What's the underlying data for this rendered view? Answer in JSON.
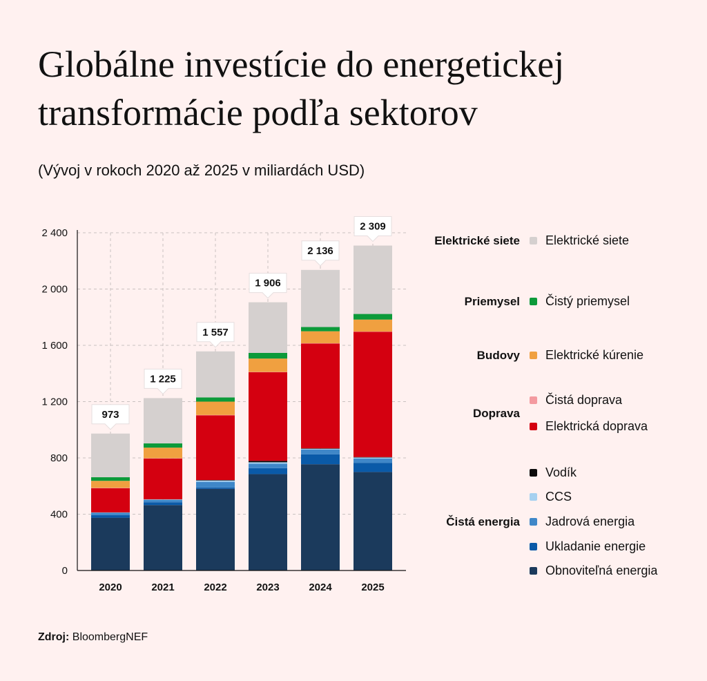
{
  "title": "Globálne investície do energetickej transformácie podľa sektorov",
  "subtitle": "(Vývoj v rokoch 2020 až 2025 v miliardách USD)",
  "source": {
    "label": "Zdroj:",
    "text": "BloombergNEF"
  },
  "chart_data": {
    "type": "bar",
    "stacked": true,
    "categories": [
      "2020",
      "2021",
      "2022",
      "2023",
      "2024",
      "2025"
    ],
    "totals": [
      973,
      1225,
      1557,
      1906,
      2136,
      2309
    ],
    "total_labels": [
      "973",
      "1 225",
      "1 557",
      "1 906",
      "2 136",
      "2 309"
    ],
    "ylim": [
      0,
      2400
    ],
    "yticks": [
      0,
      400,
      800,
      1200,
      1600,
      2000,
      2400
    ],
    "ytick_labels": [
      "0",
      "400",
      "800",
      "1 200",
      "1 600",
      "2 000",
      "2 400"
    ],
    "grid": true,
    "legend_position": "right",
    "series": [
      {
        "name": "Obnoviteľná energia",
        "group": "Čistá energia",
        "color": "#1b3a5c",
        "values": [
          375,
          465,
          580,
          685,
          755,
          700
        ]
      },
      {
        "name": "Ukladanie energie",
        "group": "Čistá energia",
        "color": "#0a5aa8",
        "values": [
          18,
          20,
          10,
          42,
          70,
          65
        ]
      },
      {
        "name": "Jadrová energia",
        "group": "Čistá energia",
        "color": "#3f87c8",
        "values": [
          17,
          17,
          40,
          32,
          35,
          30
        ]
      },
      {
        "name": "CCS",
        "group": "Čistá energia",
        "color": "#a6d1f0",
        "values": [
          2,
          3,
          10,
          10,
          5,
          8
        ]
      },
      {
        "name": "Vodík",
        "group": "Čistá energia",
        "color": "#0b0b0b",
        "values": [
          1,
          1,
          3,
          10,
          3,
          3
        ]
      },
      {
        "name": "Elektrická doprava",
        "group": "Doprava",
        "color": "#d40010",
        "values": [
          172,
          290,
          460,
          630,
          745,
          890
        ]
      },
      {
        "name": "Čistá doprava",
        "group": "Doprava",
        "color": "#f49aa0",
        "values": [
          2,
          2,
          2,
          2,
          2,
          2
        ]
      },
      {
        "name": "Elektrické kúrenie",
        "group": "Budovy",
        "color": "#f0a040",
        "values": [
          50,
          75,
          95,
          95,
          85,
          85
        ]
      },
      {
        "name": "Čistý priemysel",
        "group": "Priemysel",
        "color": "#0c9a3a",
        "values": [
          26,
          30,
          30,
          40,
          30,
          40
        ]
      },
      {
        "name": "Elektrické siete",
        "group": "Elektrické siete",
        "color": "#d5d0cf",
        "values": [
          310,
          322,
          327,
          360,
          406,
          486
        ]
      }
    ],
    "legend_groups": [
      {
        "label": "Elektrické siete",
        "items": [
          "Elektrické siete"
        ]
      },
      {
        "label": "Priemysel",
        "items": [
          "Čistý priemysel"
        ]
      },
      {
        "label": "Budovy",
        "items": [
          "Elektrické kúrenie"
        ]
      },
      {
        "label": "Doprava",
        "items": [
          "Čistá doprava",
          "Elektrická doprava"
        ]
      },
      {
        "label": "Čistá energia",
        "items": [
          "Vodík",
          "CCS",
          "Jadrová energia",
          "Ukladanie energie",
          "Obnoviteľná energia"
        ]
      }
    ]
  }
}
